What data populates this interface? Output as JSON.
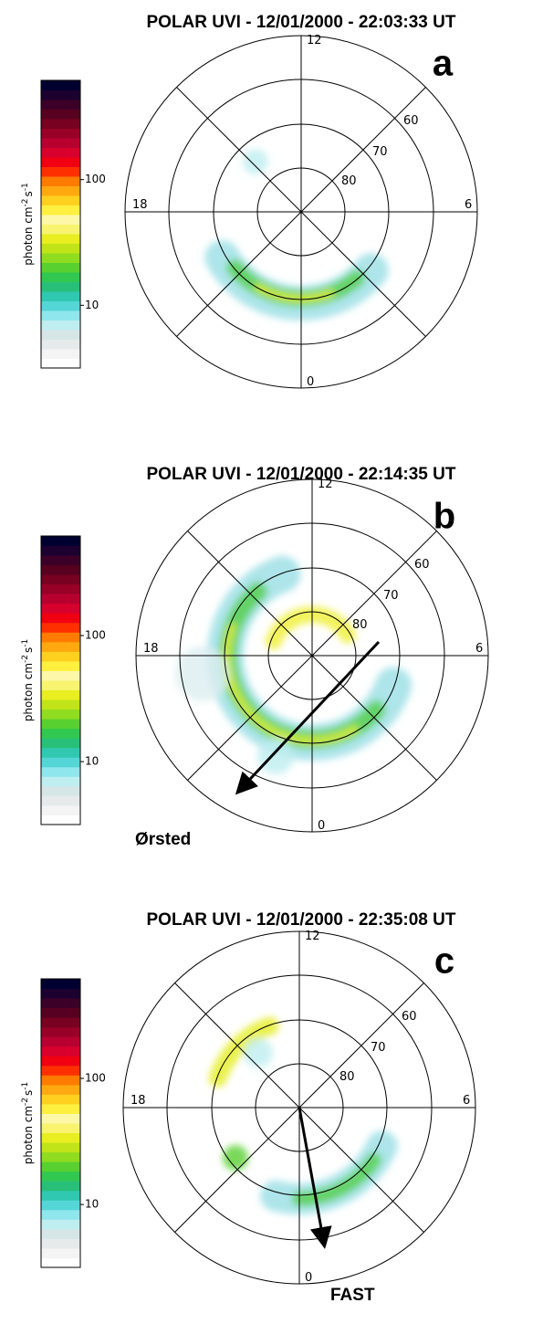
{
  "panels": [
    {
      "title": "POLAR UVI - 12/01/2000 - 22:03:33 UT",
      "letter": "a",
      "colorbar": {
        "ticks": [
          "100",
          "10"
        ],
        "label": [
          "photon cm",
          "-2",
          "s",
          "-1"
        ]
      },
      "grid_labels": {
        "top": "12",
        "bottom": "0",
        "left": "18",
        "right": "6",
        "rings": [
          "60",
          "70",
          "80"
        ]
      }
    },
    {
      "title": "POLAR UVI - 12/01/2000 - 22:14:35 UT",
      "letter": "b",
      "colorbar": {
        "ticks": [
          "100",
          "10"
        ],
        "label": [
          "photon cm",
          "-2",
          "s",
          "-1"
        ]
      },
      "grid_labels": {
        "top": "12",
        "bottom": "0",
        "left": "18",
        "right": "6",
        "rings": [
          "60",
          "70",
          "80"
        ]
      },
      "annotation": "Ørsted"
    },
    {
      "title": "POLAR UVI - 12/01/2000 - 22:35:08 UT",
      "letter": "c",
      "colorbar": {
        "ticks": [
          "100",
          "10"
        ],
        "label": [
          "photon cm",
          "-2",
          "s",
          "-1"
        ]
      },
      "grid_labels": {
        "top": "12",
        "bottom": "0",
        "left": "18",
        "right": "6",
        "rings": [
          "60",
          "70",
          "80"
        ]
      },
      "annotation": "FAST"
    }
  ]
}
